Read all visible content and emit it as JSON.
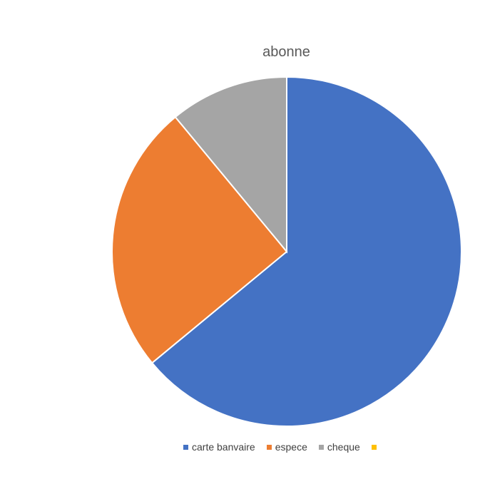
{
  "chart_data": {
    "type": "pie",
    "title": "abonne",
    "categories": [
      "carte banvaire",
      "espece",
      "cheque",
      ""
    ],
    "values": [
      64,
      25,
      11,
      0
    ],
    "colors": [
      "#4472C4",
      "#ED7D31",
      "#A5A5A5",
      "#FFC000"
    ],
    "legend_position": "bottom"
  }
}
